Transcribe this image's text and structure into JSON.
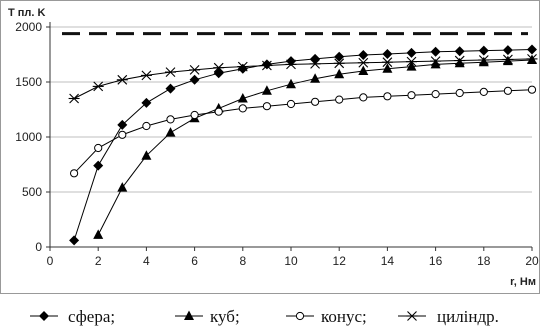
{
  "chart_data": {
    "type": "line",
    "title": "",
    "ylabel": "T пл. K",
    "xlabel": "r, Нм",
    "xlim": [
      0,
      20
    ],
    "ylim": [
      0,
      2000
    ],
    "xticks": [
      0,
      2,
      4,
      6,
      8,
      10,
      12,
      14,
      16,
      18,
      20
    ],
    "yticks": [
      0,
      500,
      1000,
      1500,
      2000
    ],
    "xtick_labels": [
      "0",
      "2",
      "4",
      "6",
      "8",
      "10",
      "12",
      "14",
      "16",
      "18",
      "20"
    ],
    "ytick_labels": [
      "0",
      "500",
      "1000",
      "1500",
      "2000"
    ],
    "grid": "horizontal",
    "legend_position": "bottom",
    "reference_line": {
      "y": 1940,
      "style": "dashed"
    },
    "series": [
      {
        "name": "сфера;",
        "marker": "diamond-filled",
        "x": [
          1,
          2,
          3,
          4,
          5,
          6,
          7,
          8,
          9,
          10,
          11,
          12,
          13,
          14,
          15,
          16,
          17,
          18,
          19,
          20
        ],
        "values": [
          60,
          740,
          1110,
          1310,
          1440,
          1520,
          1580,
          1620,
          1660,
          1690,
          1710,
          1730,
          1745,
          1755,
          1765,
          1775,
          1780,
          1785,
          1790,
          1795
        ]
      },
      {
        "name": "куб;",
        "marker": "triangle-filled",
        "x": [
          2,
          3,
          4,
          5,
          6,
          7,
          8,
          9,
          10,
          11,
          12,
          13,
          14,
          15,
          16,
          17,
          18,
          19,
          20
        ],
        "values": [
          110,
          540,
          830,
          1040,
          1170,
          1260,
          1350,
          1420,
          1480,
          1530,
          1570,
          1600,
          1620,
          1640,
          1660,
          1670,
          1680,
          1690,
          1700
        ]
      },
      {
        "name": "конус;",
        "marker": "circle-open",
        "x": [
          1,
          2,
          3,
          4,
          5,
          6,
          7,
          8,
          9,
          10,
          11,
          12,
          13,
          14,
          15,
          16,
          17,
          18,
          19,
          20
        ],
        "values": [
          670,
          900,
          1020,
          1100,
          1160,
          1200,
          1230,
          1260,
          1280,
          1300,
          1320,
          1340,
          1360,
          1370,
          1380,
          1390,
          1400,
          1410,
          1420,
          1430
        ]
      },
      {
        "name": "циліндр.",
        "marker": "star",
        "x": [
          1,
          2,
          3,
          4,
          5,
          6,
          7,
          8,
          9,
          10,
          11,
          12,
          13,
          14,
          15,
          16,
          17,
          18,
          19,
          20
        ],
        "values": [
          1350,
          1460,
          1520,
          1560,
          1590,
          1610,
          1630,
          1640,
          1650,
          1660,
          1665,
          1670,
          1675,
          1680,
          1685,
          1690,
          1695,
          1700,
          1705,
          1710
        ]
      }
    ]
  }
}
